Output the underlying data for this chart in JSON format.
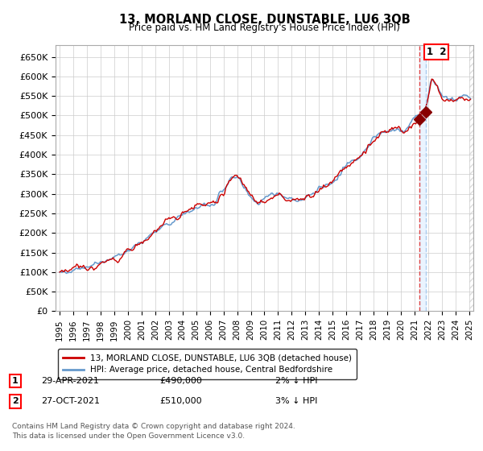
{
  "title": "13, MORLAND CLOSE, DUNSTABLE, LU6 3QB",
  "subtitle": "Price paid vs. HM Land Registry's House Price Index (HPI)",
  "ylim": [
    0,
    680000
  ],
  "yticks": [
    0,
    50000,
    100000,
    150000,
    200000,
    250000,
    300000,
    350000,
    400000,
    450000,
    500000,
    550000,
    600000,
    650000
  ],
  "ytick_labels": [
    "£0",
    "£50K",
    "£100K",
    "£150K",
    "£200K",
    "£250K",
    "£300K",
    "£350K",
    "£400K",
    "£450K",
    "£500K",
    "£550K",
    "£600K",
    "£650K"
  ],
  "hpi_color": "#6699cc",
  "price_color": "#cc0000",
  "marker_color": "#880000",
  "vline_color_red": "#dd4444",
  "vline_color_blue": "#aaccee",
  "transaction1_x": 2021.33,
  "transaction1_y": 490000,
  "transaction2_x": 2021.83,
  "transaction2_y": 510000,
  "legend_line1": "13, MORLAND CLOSE, DUNSTABLE, LU6 3QB (detached house)",
  "legend_line2": "HPI: Average price, detached house, Central Bedfordshire",
  "table_row1_num": "1",
  "table_row1_date": "29-APR-2021",
  "table_row1_price": "£490,000",
  "table_row1_hpi": "2% ↓ HPI",
  "table_row2_num": "2",
  "table_row2_date": "27-OCT-2021",
  "table_row2_price": "£510,000",
  "table_row2_hpi": "3% ↓ HPI",
  "footer": "Contains HM Land Registry data © Crown copyright and database right 2024.\nThis data is licensed under the Open Government Licence v3.0.",
  "bg_color": "#ffffff",
  "grid_color": "#cccccc",
  "year_start": 1995,
  "year_end": 2025,
  "xlim_left": 1994.7,
  "xlim_right": 2025.3
}
